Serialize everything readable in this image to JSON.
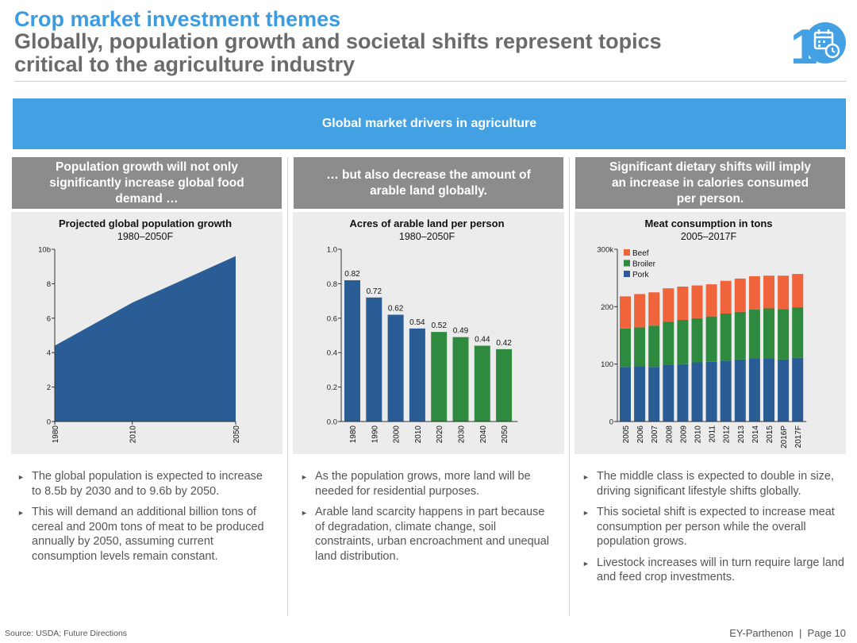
{
  "header": {
    "title": "Crop market investment themes",
    "subtitle": "Globally, population growth and societal shifts represent topics critical to the agriculture industry",
    "page_badge": "1",
    "badge_icon": "calendar-clock-icon",
    "accent_color": "#43a1e3"
  },
  "banner": {
    "label": "Global market drivers in agriculture"
  },
  "columns": [
    {
      "heading": "Population growth will not only significantly increase global food demand …",
      "bullets": [
        "The global population is expected to increase to 8.5b by 2030 and to 9.6b by 2050.",
        "This will demand an additional billion tons of cereal and 200m tons of meat to be produced annually by 2050, assuming current consumption levels remain constant."
      ]
    },
    {
      "heading": "… but also decrease the amount of arable land globally.",
      "bullets": [
        "As the population grows, more land will be needed for residential purposes.",
        "Arable land scarcity happens in part because of degradation, climate change, soil constraints, urban encroachment and unequal land distribution."
      ]
    },
    {
      "heading": "Significant dietary shifts will imply an increase in calories consumed per person.",
      "bullets": [
        "The middle class is expected to double in size, driving significant lifestyle shifts globally.",
        "This societal shift is expected to increase meat consumption per person while the overall population grows.",
        "Livestock increases will in turn require large land and feed crop investments."
      ]
    }
  ],
  "chart_data": [
    {
      "type": "area",
      "title": "Projected global population growth",
      "subtitle": "1980–2050F",
      "x": [
        1980,
        2010,
        2050
      ],
      "x_tick_labels": [
        "1980",
        "2010",
        "2050"
      ],
      "values": [
        4.4,
        6.9,
        9.6
      ],
      "ylim": [
        0,
        10
      ],
      "y_ticks": [
        0,
        2,
        4,
        6,
        8,
        10
      ],
      "y_tick_labels": [
        "0",
        "2",
        "4",
        "6",
        "8",
        "10b"
      ],
      "color": "#2a5c96"
    },
    {
      "type": "bar",
      "title": "Acres of arable land per person",
      "subtitle": "1980–2050F",
      "categories": [
        "1980",
        "1990",
        "2000",
        "2010",
        "2020",
        "2030",
        "2040",
        "2050"
      ],
      "values": [
        0.82,
        0.72,
        0.62,
        0.54,
        0.52,
        0.49,
        0.44,
        0.42
      ],
      "data_labels": [
        "0.82",
        "0.72",
        "0.62",
        "0.54",
        "0.52",
        "0.49",
        "0.44",
        "0.42"
      ],
      "bar_colors": [
        "#2a5c96",
        "#2a5c96",
        "#2a5c96",
        "#2a5c96",
        "#2d8a3e",
        "#2d8a3e",
        "#2d8a3e",
        "#2d8a3e"
      ],
      "ylim": [
        0,
        1.0
      ],
      "y_ticks": [
        0,
        0.2,
        0.4,
        0.6,
        0.8,
        1.0
      ],
      "y_tick_labels": [
        "0.0",
        "0.2",
        "0.4",
        "0.6",
        "0.8",
        "1.0"
      ]
    },
    {
      "type": "bar",
      "stacked": true,
      "title": "Meat consumption in tons",
      "subtitle": "2005–2017F",
      "categories": [
        "2005",
        "2006",
        "2007",
        "2008",
        "2009",
        "2010",
        "2011",
        "2012",
        "2013",
        "2014",
        "2015",
        "2016P",
        "2017F"
      ],
      "series": [
        {
          "name": "Pork",
          "color": "#2a5c96",
          "values": [
            95,
            96,
            95,
            99,
            100,
            103,
            104,
            106,
            108,
            110,
            110,
            108,
            111
          ]
        },
        {
          "name": "Broiler",
          "color": "#2d8a3e",
          "values": [
            67,
            68,
            72,
            75,
            77,
            77,
            79,
            82,
            83,
            85,
            87,
            88,
            88
          ]
        },
        {
          "name": "Beef",
          "color": "#f0643c",
          "values": [
            56,
            58,
            58,
            58,
            58,
            57,
            56,
            57,
            58,
            58,
            57,
            58,
            58
          ]
        }
      ],
      "legend_order": [
        "Beef",
        "Broiler",
        "Pork"
      ],
      "legend_position": "top-left",
      "ylim": [
        0,
        300
      ],
      "y_ticks": [
        0,
        100,
        200,
        300
      ],
      "y_tick_labels": [
        "0",
        "100",
        "200",
        "300k"
      ]
    }
  ],
  "footer": {
    "source": "Source: USDA; Future Directions",
    "right": "EY-Parthenon  |  Page 10"
  }
}
